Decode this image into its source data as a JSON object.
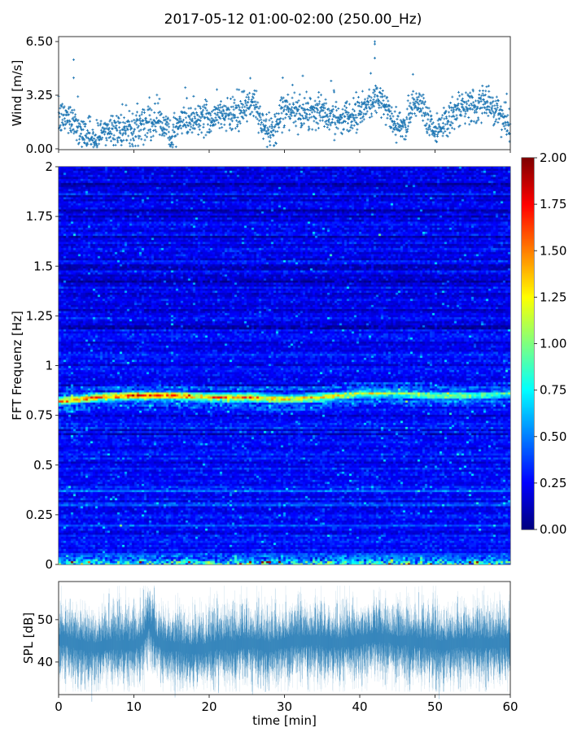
{
  "title": "2017-05-12 01:00-02:00 (250.00_Hz)",
  "colors": {
    "series": "#1f77b4",
    "axis": "#333333"
  },
  "chart_data": [
    {
      "type": "scatter",
      "panel": "wind",
      "ylabel": "Wind [m/s]",
      "xlim": [
        0,
        60
      ],
      "ylim": [
        -0.05,
        6.8
      ],
      "yticks": [
        0.0,
        3.25,
        6.5
      ],
      "ytick_labels": [
        "0.00",
        "3.25",
        "6.50"
      ],
      "xticks": [
        0,
        10,
        20,
        30,
        40,
        50,
        60
      ],
      "marker": "+",
      "x_unit": "min",
      "minute_means": [
        1.8,
        1.9,
        1.8,
        1.0,
        0.8,
        0.6,
        1.0,
        1.3,
        1.2,
        1.3,
        1.2,
        1.6,
        1.8,
        1.6,
        1.5,
        0.7,
        1.5,
        1.8,
        1.8,
        2.0,
        1.8,
        2.0,
        2.2,
        2.0,
        2.3,
        2.6,
        2.8,
        1.6,
        1.0,
        1.4,
        2.2,
        2.4,
        2.2,
        2.2,
        2.4,
        2.2,
        1.8,
        1.8,
        2.0,
        2.2,
        2.2,
        2.6,
        3.2,
        2.8,
        2.0,
        1.4,
        1.4,
        2.8,
        2.8,
        2.0,
        1.0,
        1.6,
        2.0,
        2.2,
        2.4,
        2.6,
        2.6,
        2.8,
        2.6,
        1.8,
        1.0
      ],
      "max_value": 6.5
    },
    {
      "type": "heatmap",
      "panel": "spectrogram",
      "ylabel": "FFT Frequenz [Hz]",
      "xlim": [
        0,
        60
      ],
      "ylim": [
        0,
        2
      ],
      "yticks": [
        0,
        0.25,
        0.5,
        0.75,
        1,
        1.25,
        1.5,
        1.75,
        2
      ],
      "ytick_labels": [
        "0",
        "0.25",
        "0.5",
        "0.75",
        "1",
        "1.25",
        "1.5",
        "1.75",
        "2"
      ],
      "colormap": "jet",
      "clim": [
        0,
        2
      ],
      "colorbar_ticks": [
        "0.00",
        "0.25",
        "0.50",
        "0.75",
        "1.00",
        "1.25",
        "1.50",
        "1.75",
        "2.00"
      ],
      "background_level": 0.25,
      "ridge": {
        "times": [
          0,
          5,
          10,
          15,
          20,
          25,
          30,
          35,
          40,
          45,
          50,
          55,
          60
        ],
        "frequency": [
          0.82,
          0.84,
          0.85,
          0.85,
          0.84,
          0.84,
          0.83,
          0.84,
          0.86,
          0.86,
          0.85,
          0.85,
          0.86
        ],
        "level": [
          1.4,
          1.6,
          1.8,
          1.6,
          1.4,
          1.5,
          1.3,
          1.4,
          1.1,
          1.0,
          1.0,
          0.9,
          0.8
        ]
      },
      "low_freq_level": 0.9
    },
    {
      "type": "line",
      "panel": "spl",
      "ylabel": "SPL [dB]",
      "xlabel": "time [min]",
      "xlim": [
        0,
        60
      ],
      "ylim": [
        32.3,
        59
      ],
      "yticks": [
        40,
        50
      ],
      "ytick_labels": [
        "40",
        "50"
      ],
      "xticks": [
        0,
        10,
        20,
        30,
        40,
        50,
        60
      ],
      "xtick_labels": [
        "0",
        "10",
        "20",
        "30",
        "40",
        "50",
        "60"
      ],
      "minute_means": [
        45,
        45,
        44.5,
        44,
        43.5,
        43.5,
        44,
        44,
        44,
        44,
        44,
        45,
        49,
        45,
        44,
        43.5,
        43.5,
        43,
        43,
        43,
        43.5,
        44,
        44,
        43.5,
        44.5,
        44.5,
        44.5,
        44,
        43.5,
        44,
        44.5,
        45,
        45,
        45,
        45,
        45,
        44.5,
        44.5,
        44.5,
        45,
        45,
        45.5,
        46,
        45.5,
        45.5,
        45,
        45,
        45,
        44.5,
        44.5,
        44,
        44,
        44,
        44.5,
        44.5,
        44.5,
        44.5,
        44.5,
        44.5,
        44.5,
        44.5
      ]
    }
  ]
}
